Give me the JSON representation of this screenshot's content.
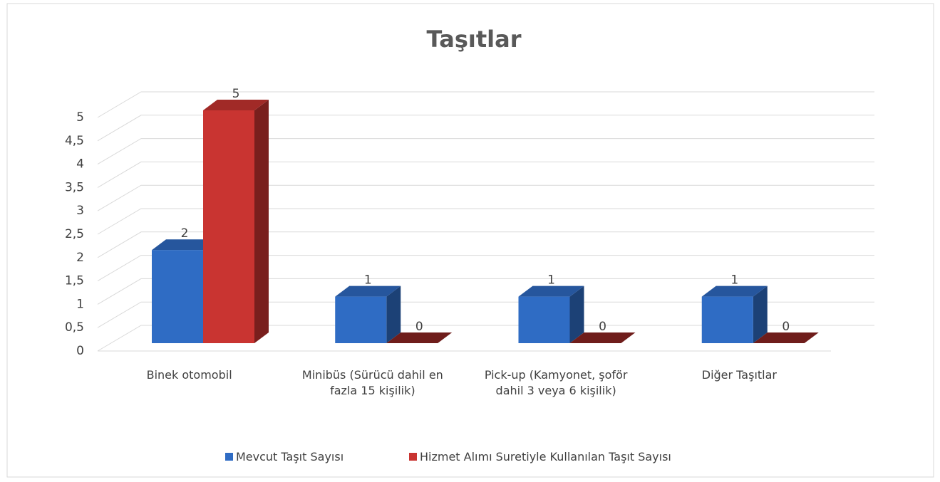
{
  "chart_data": {
    "type": "bar3d",
    "title": "Taşıtlar",
    "categories": [
      "Binek otomobil",
      "Minibüs (Sürücü dahil en fazla 15 kişilik)",
      "Pick-up (Kamyonet, şoför dahil 3 veya 6 kişilik)",
      "Diğer Taşıtlar"
    ],
    "series": [
      {
        "name": "Mevcut Taşıt Sayısı",
        "color": "#2f6cc4",
        "values": [
          2,
          1,
          1,
          1
        ]
      },
      {
        "name": "Hizmet Alımı Suretiyle Kullanılan Taşıt Sayısı",
        "color": "#c93431",
        "values": [
          5,
          0,
          0,
          0
        ]
      }
    ],
    "ylim": [
      0,
      5
    ],
    "yticks": [
      0,
      {
        "value": 0.5,
        "label": "0,5"
      },
      1,
      {
        "value": 1.5,
        "label": "1,5"
      },
      2,
      {
        "value": 2.5,
        "label": "2,5"
      },
      3,
      {
        "value": 3.5,
        "label": "3,5"
      },
      4,
      {
        "value": 4.5,
        "label": "4,5"
      },
      5
    ],
    "grid": true,
    "legend": "bottom"
  }
}
